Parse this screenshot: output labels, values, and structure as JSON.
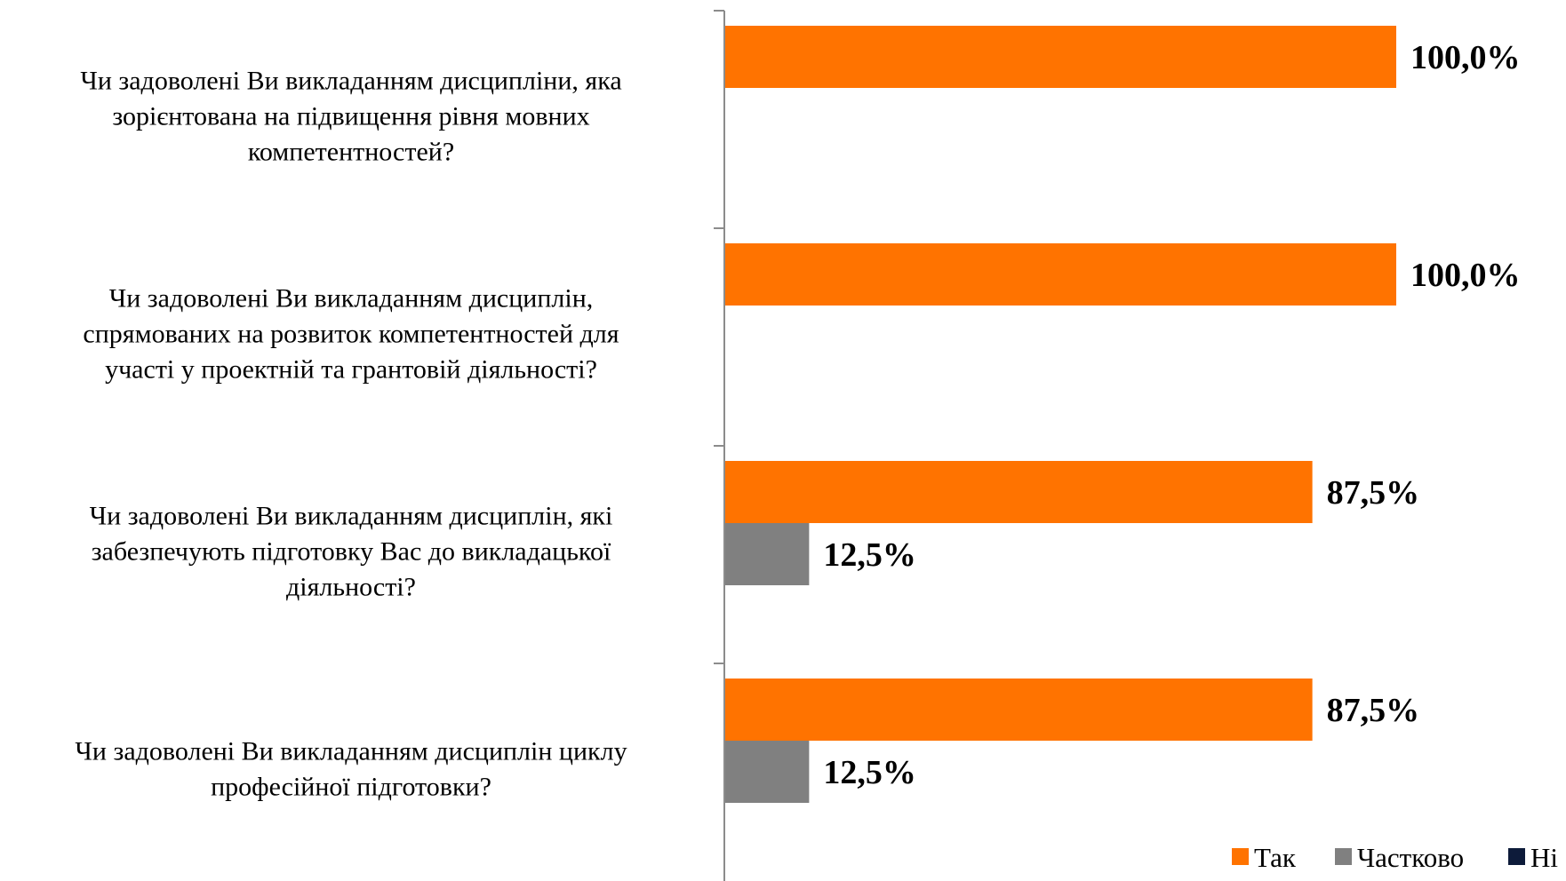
{
  "chart_data": {
    "type": "bar",
    "orientation": "horizontal",
    "categories": [
      [
        "Чи задоволені Ви викладанням дисципліни, яка",
        "зорієнтована на підвищення рівня мовних",
        "компетентностей?"
      ],
      [
        "Чи задоволені Ви викладанням дисциплін,",
        "спрямованих на розвиток компетентностей для",
        "участі у проектній та грантовій діяльності?"
      ],
      [
        "Чи задоволені Ви викладанням дисциплін, які",
        "забезпечують підготовку Вас до викладацької",
        "діяльності?"
      ],
      [
        "Чи задоволені Ви викладанням дисциплін циклу",
        "професійної підготовки?"
      ]
    ],
    "series": [
      {
        "name": "Так",
        "color": "#FF7300",
        "values": [
          100.0,
          100.0,
          87.5,
          87.5
        ],
        "labels": [
          "100,0%",
          "100,0%",
          "87,5%",
          "87,5%"
        ]
      },
      {
        "name": "Частково",
        "color": "#808080",
        "values": [
          0,
          0,
          12.5,
          12.5
        ],
        "labels": [
          "",
          "",
          "12,5%",
          "12,5%"
        ]
      },
      {
        "name": "Ні",
        "color": "#0D1B3A",
        "values": [
          0,
          0,
          0,
          0
        ],
        "labels": [
          "",
          "",
          "",
          ""
        ]
      }
    ],
    "xlim": [
      0,
      100
    ],
    "grid": false,
    "legend": "bottom-right",
    "title": "",
    "xlabel": "",
    "ylabel": ""
  }
}
